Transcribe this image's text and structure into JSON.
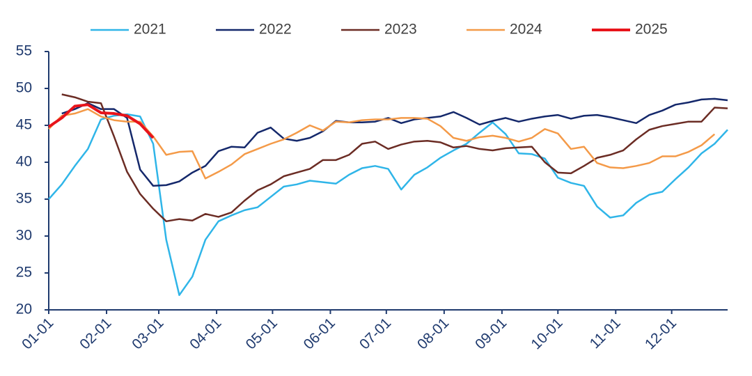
{
  "chart_data": {
    "type": "line",
    "x": [
      0,
      7,
      14,
      21,
      28,
      35,
      42,
      49,
      56,
      63,
      70,
      77,
      84,
      91,
      98,
      105,
      112,
      119,
      126,
      133,
      140,
      147,
      154,
      161,
      168,
      175,
      182,
      189,
      196,
      203,
      210,
      217,
      224,
      231,
      238,
      245,
      252,
      259,
      266,
      273,
      280,
      287,
      294,
      301,
      308,
      315,
      322,
      329,
      336,
      343,
      350,
      357,
      364
    ],
    "xlim": [
      0,
      364
    ],
    "xticks": [
      {
        "value": 0,
        "label": "01-01"
      },
      {
        "value": 31,
        "label": "02-01"
      },
      {
        "value": 59,
        "label": "03-01"
      },
      {
        "value": 90,
        "label": "04-01"
      },
      {
        "value": 120,
        "label": "05-01"
      },
      {
        "value": 151,
        "label": "06-01"
      },
      {
        "value": 181,
        "label": "07-01"
      },
      {
        "value": 212,
        "label": "08-01"
      },
      {
        "value": 243,
        "label": "09-01"
      },
      {
        "value": 273,
        "label": "10-01"
      },
      {
        "value": 304,
        "label": "11-01"
      },
      {
        "value": 334,
        "label": "12-01"
      }
    ],
    "ylim": [
      20,
      55
    ],
    "yticks": [
      20,
      25,
      30,
      35,
      40,
      45,
      50,
      55
    ],
    "series": [
      {
        "name": "2021",
        "color": "#2fb5e8",
        "values": [
          35,
          37,
          39.5,
          41.8,
          45.8,
          46.3,
          46.5,
          46.2,
          42.5,
          29.5,
          22,
          24.5,
          29.5,
          32,
          32.8,
          33.5,
          33.9,
          35.3,
          36.7,
          37,
          37.5,
          37.3,
          37.1,
          38.3,
          39.2,
          39.5,
          39.1,
          36.3,
          38.3,
          39.3,
          40.6,
          41.6,
          42.5,
          44,
          45.4,
          43.8,
          41.2,
          41.1,
          40.5,
          37.9,
          37.2,
          36.8,
          34,
          32.5,
          32.8,
          34.5,
          35.6,
          36,
          37.7,
          39.3,
          41.2,
          42.5,
          44.4
        ]
      },
      {
        "name": "2022",
        "color": "#14286b",
        "values": [
          null,
          46.6,
          47.2,
          48,
          47.2,
          47.2,
          46,
          39,
          36.8,
          36.9,
          37.4,
          38.6,
          39.5,
          41.5,
          42.1,
          42,
          44,
          44.7,
          43.2,
          42.9,
          43.3,
          44.2,
          45.6,
          45.4,
          45.4,
          45.5,
          46,
          45.3,
          45.8,
          46,
          46.2,
          46.8,
          46,
          45.1,
          45.6,
          46,
          45.5,
          45.9,
          46.2,
          46.4,
          45.9,
          46.3,
          46.4,
          46.1,
          45.7,
          45.3,
          46.4,
          47,
          47.8,
          48.1,
          48.5,
          48.6,
          48.4
        ]
      },
      {
        "name": "2023",
        "color": "#6b2c24",
        "values": [
          null,
          49.2,
          48.8,
          48.2,
          48,
          43.5,
          38.7,
          35.7,
          33.7,
          32,
          32.3,
          32.1,
          33,
          32.6,
          33.2,
          34.8,
          36.2,
          37,
          38.1,
          38.6,
          39.1,
          40.3,
          40.3,
          41,
          42.5,
          42.8,
          41.8,
          42.4,
          42.8,
          42.9,
          42.7,
          42,
          42.2,
          41.8,
          41.6,
          41.9,
          42,
          42.1,
          40,
          38.6,
          38.5,
          39.5,
          40.6,
          41,
          41.6,
          43.1,
          44.4,
          44.9,
          45.2,
          45.5,
          45.5,
          47.4,
          47.3
        ]
      },
      {
        "name": "2024",
        "color": "#f49a48",
        "values": [
          44.5,
          46.3,
          46.6,
          47.2,
          46.2,
          45.7,
          45.5,
          45.5,
          43.5,
          41,
          41.4,
          41.5,
          37.8,
          38.7,
          39.7,
          41.1,
          41.8,
          42.5,
          43.1,
          44,
          45,
          44.3,
          45.5,
          45.4,
          45.7,
          45.8,
          45.8,
          46,
          46,
          45.9,
          44.9,
          43.3,
          42.9,
          43.4,
          43.6,
          43.3,
          42.8,
          43.3,
          44.5,
          43.9,
          41.8,
          42.1,
          39.9,
          39.3,
          39.2,
          39.5,
          39.9,
          40.8,
          40.8,
          41.4,
          42.3,
          43.8,
          null
        ]
      },
      {
        "name": "2025",
        "color": "#e8141b",
        "values": [
          44.8,
          46,
          47.6,
          47.8,
          46.7,
          46.6,
          46.3,
          45.2,
          43.3,
          null,
          null,
          null,
          null,
          null,
          null,
          null,
          null,
          null,
          null,
          null,
          null,
          null,
          null,
          null,
          null,
          null,
          null,
          null,
          null,
          null,
          null,
          null,
          null,
          null,
          null,
          null,
          null,
          null,
          null,
          null,
          null,
          null,
          null,
          null,
          null,
          null,
          null,
          null,
          null,
          null,
          null,
          null,
          null
        ]
      }
    ]
  }
}
